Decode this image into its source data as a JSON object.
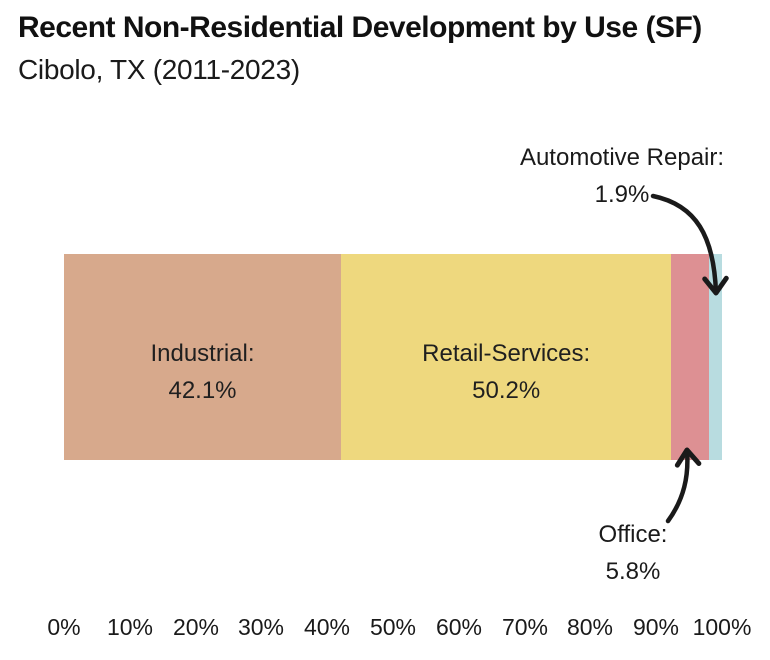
{
  "title": "Recent Non-Residential Development by Use (SF)",
  "subtitle": "Cibolo, TX (2011-2023)",
  "segments": [
    {
      "name": "Industrial",
      "value": 42.1,
      "color": "#d7a98c",
      "label_line1": "Industrial:",
      "label_line2": "42.1%"
    },
    {
      "name": "Retail-Services",
      "value": 50.2,
      "color": "#eed87e",
      "label_line1": "Retail-Services:",
      "label_line2": "50.2%"
    },
    {
      "name": "Office",
      "value": 5.8,
      "color": "#dd9093"
    },
    {
      "name": "Automotive Repair",
      "value": 1.9,
      "color": "#b8dce0"
    }
  ],
  "annotations": [
    {
      "line1": "Automotive Repair:",
      "line2": "1.9%"
    },
    {
      "line1": "Office:",
      "line2": "5.8%"
    }
  ],
  "axis": {
    "ticks": [
      "0%",
      "10%",
      "20%",
      "30%",
      "40%",
      "50%",
      "60%",
      "70%",
      "80%",
      "90%",
      "100%"
    ]
  },
  "colors": {
    "industrial": "#d7a98c",
    "retail_services": "#eed87e",
    "office": "#dd9093",
    "automotive_repair": "#b8dce0",
    "text": "#1a1a1a",
    "arrow": "#1a1a1a",
    "background": "#ffffff"
  },
  "chart_data": {
    "type": "bar",
    "subtype": "horizontal-stacked-percentage",
    "title": "Recent Non-Residential Development by Use (SF)",
    "subtitle": "Cibolo, TX (2011-2023)",
    "categories": [
      "Industrial",
      "Retail-Services",
      "Office",
      "Automotive Repair"
    ],
    "values": [
      42.1,
      50.2,
      5.8,
      1.9
    ],
    "unit": "percent of square footage",
    "xlabel": "",
    "ylabel": "",
    "xlim": [
      0,
      100
    ],
    "x_tick_labels": [
      "0%",
      "10%",
      "20%",
      "30%",
      "40%",
      "50%",
      "60%",
      "70%",
      "80%",
      "90%",
      "100%"
    ],
    "grid": false,
    "legend_position": "none",
    "label_style": "large segments labeled inside bar; small segments (Office, Automotive Repair) labeled via curved arrow annotations"
  }
}
